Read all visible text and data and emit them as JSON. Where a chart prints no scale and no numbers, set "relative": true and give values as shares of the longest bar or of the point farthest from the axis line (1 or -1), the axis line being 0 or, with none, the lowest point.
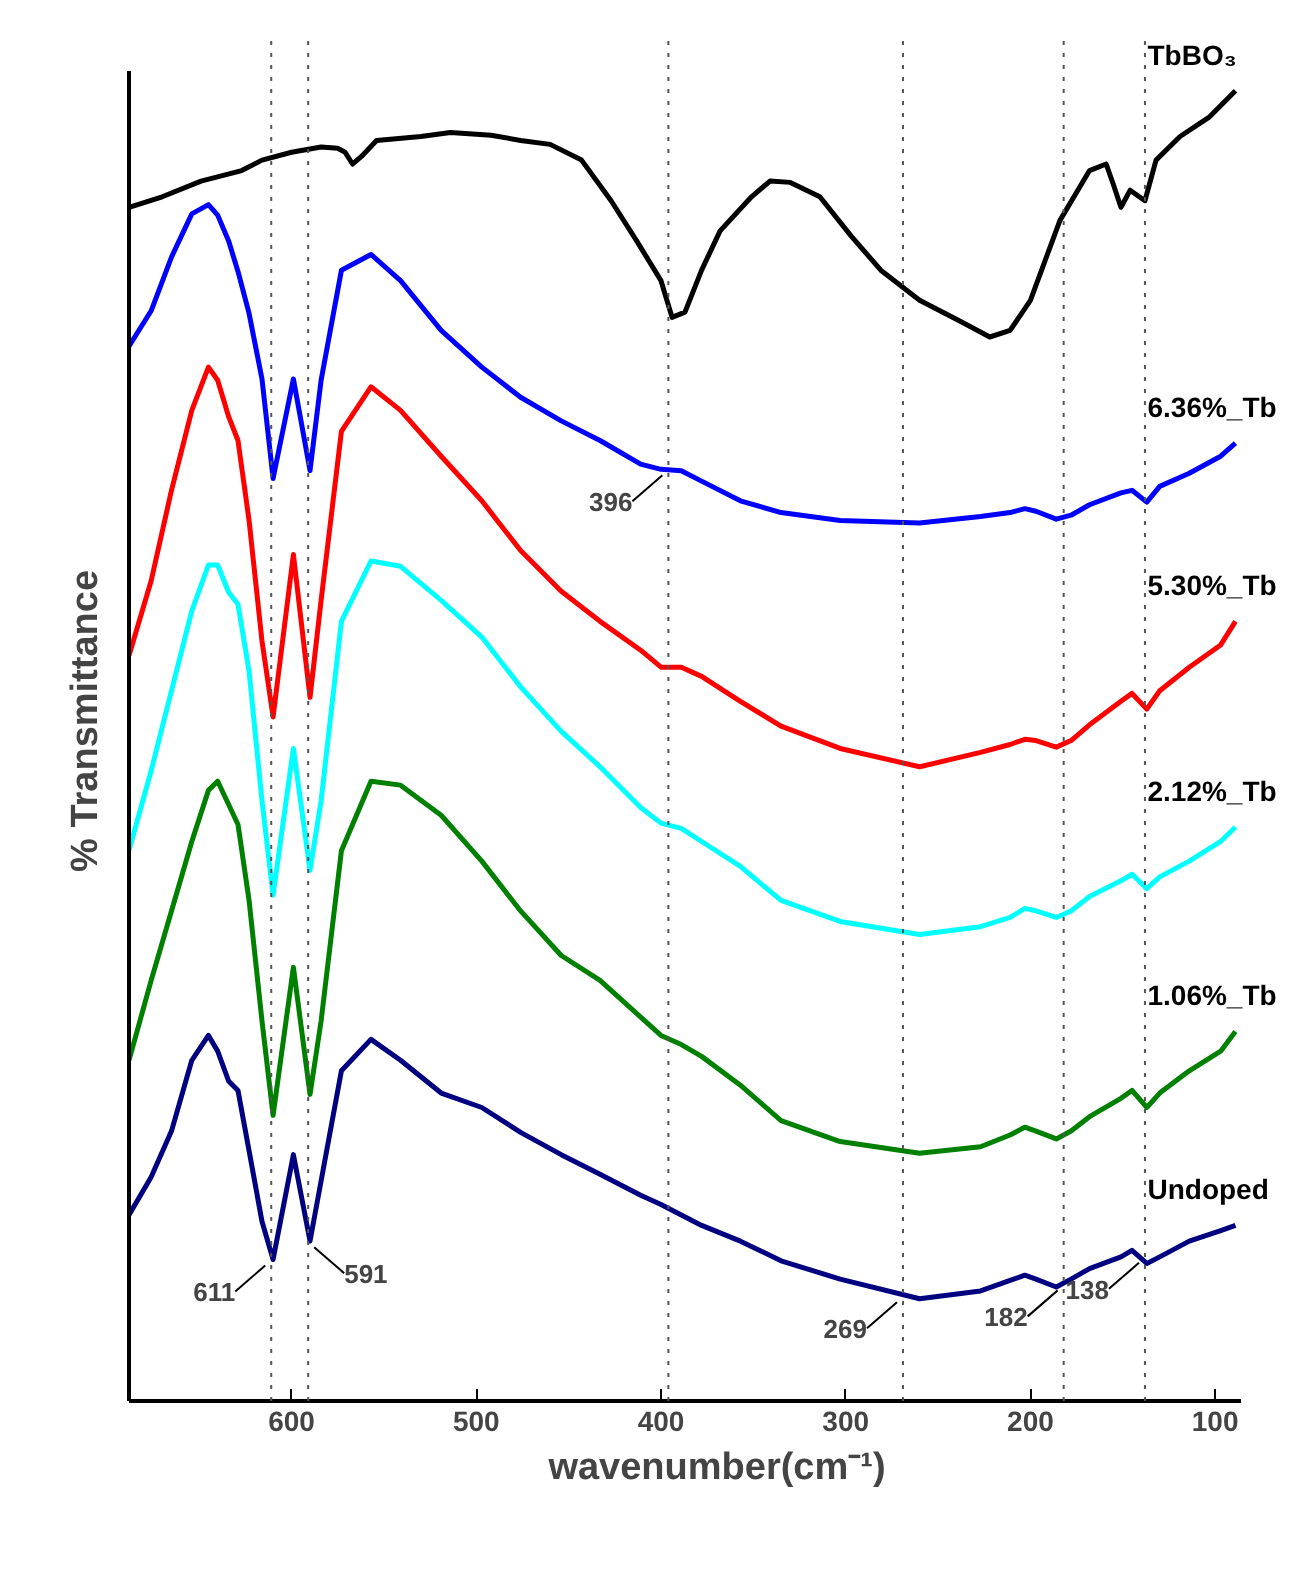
{
  "chart_data": {
    "type": "line",
    "relative": true,
    "xlabel": "wavenumber(cm⁻¹)",
    "ylabel": "% Transmittance",
    "xlim": [
      688,
      86
    ],
    "xticks": [
      600,
      500,
      400,
      300,
      200,
      100
    ],
    "grid": false,
    "legend": false,
    "marker": "none",
    "line_style": "solid",
    "x": [
      688,
      676,
      665,
      654,
      645,
      640,
      634,
      629,
      623,
      616,
      610,
      599,
      590,
      584,
      573,
      557,
      541,
      519,
      497,
      476,
      454,
      433,
      411,
      400,
      389,
      378,
      357,
      335,
      303,
      260,
      227,
      211,
      203,
      197,
      186,
      178,
      168,
      151,
      145,
      137,
      130,
      114,
      97,
      89
    ],
    "series": [
      {
        "name": "TbBO₃",
        "color": "#000000",
        "x": [
          688,
          670,
          649,
          627,
          616,
          600,
          584,
          575,
          571,
          567,
          562,
          554,
          530,
          514,
          492,
          476,
          460,
          443,
          427,
          413,
          400,
          394,
          387,
          378,
          368,
          351,
          341,
          330,
          314,
          297,
          281,
          260,
          238,
          222,
          211,
          200,
          184,
          168,
          159,
          155,
          151,
          146,
          143,
          138,
          132,
          119,
          103,
          89
        ],
        "values": [
          0.911,
          0.919,
          0.931,
          0.939,
          0.947,
          0.953,
          0.957,
          0.956,
          0.953,
          0.944,
          0.95,
          0.962,
          0.965,
          0.968,
          0.966,
          0.962,
          0.959,
          0.947,
          0.916,
          0.885,
          0.855,
          0.827,
          0.831,
          0.863,
          0.893,
          0.919,
          0.931,
          0.93,
          0.919,
          0.889,
          0.863,
          0.84,
          0.824,
          0.812,
          0.817,
          0.84,
          0.901,
          0.939,
          0.944,
          0.928,
          0.911,
          0.924,
          0.921,
          0.916,
          0.947,
          0.965,
          0.98,
          1.0
        ]
      },
      {
        "name": "6.36%_Tb",
        "color": "#0000ff",
        "values": [
          0.805,
          0.832,
          0.873,
          0.906,
          0.913,
          0.905,
          0.885,
          0.862,
          0.83,
          0.78,
          0.704,
          0.78,
          0.71,
          0.779,
          0.863,
          0.875,
          0.855,
          0.817,
          0.789,
          0.766,
          0.748,
          0.733,
          0.715,
          0.711,
          0.71,
          0.702,
          0.687,
          0.678,
          0.672,
          0.67,
          0.675,
          0.678,
          0.681,
          0.679,
          0.673,
          0.676,
          0.684,
          0.693,
          0.695,
          0.686,
          0.698,
          0.708,
          0.721,
          0.731
        ]
      },
      {
        "name": "5.30%_Tb",
        "color": "#ff0000",
        "values": [
          0.569,
          0.626,
          0.695,
          0.756,
          0.789,
          0.779,
          0.751,
          0.733,
          0.672,
          0.58,
          0.522,
          0.646,
          0.537,
          0.611,
          0.74,
          0.774,
          0.756,
          0.721,
          0.687,
          0.649,
          0.618,
          0.595,
          0.573,
          0.56,
          0.56,
          0.553,
          0.534,
          0.515,
          0.498,
          0.484,
          0.495,
          0.501,
          0.505,
          0.504,
          0.499,
          0.504,
          0.516,
          0.534,
          0.54,
          0.528,
          0.542,
          0.56,
          0.577,
          0.595
        ]
      },
      {
        "name": "2.12%_Tb",
        "color": "#00ffff",
        "values": [
          0.42,
          0.481,
          0.542,
          0.603,
          0.638,
          0.638,
          0.617,
          0.608,
          0.557,
          0.458,
          0.386,
          0.498,
          0.405,
          0.458,
          0.595,
          0.641,
          0.637,
          0.611,
          0.583,
          0.545,
          0.511,
          0.484,
          0.453,
          0.441,
          0.437,
          0.427,
          0.408,
          0.382,
          0.366,
          0.356,
          0.362,
          0.369,
          0.376,
          0.374,
          0.369,
          0.374,
          0.385,
          0.397,
          0.402,
          0.391,
          0.4,
          0.412,
          0.427,
          0.438
        ]
      },
      {
        "name": "1.06%_Tb",
        "color": "#008000",
        "values": [
          0.26,
          0.321,
          0.374,
          0.427,
          0.466,
          0.473,
          0.455,
          0.44,
          0.382,
          0.29,
          0.218,
          0.331,
          0.234,
          0.29,
          0.42,
          0.473,
          0.47,
          0.447,
          0.412,
          0.374,
          0.34,
          0.321,
          0.293,
          0.279,
          0.272,
          0.263,
          0.241,
          0.214,
          0.198,
          0.189,
          0.194,
          0.203,
          0.209,
          0.206,
          0.2,
          0.206,
          0.217,
          0.231,
          0.237,
          0.224,
          0.235,
          0.252,
          0.267,
          0.282
        ]
      },
      {
        "name": "Undoped",
        "color": "#000080",
        "values": [
          0.142,
          0.171,
          0.206,
          0.26,
          0.279,
          0.267,
          0.244,
          0.237,
          0.191,
          0.137,
          0.108,
          0.188,
          0.122,
          0.168,
          0.252,
          0.276,
          0.26,
          0.235,
          0.224,
          0.205,
          0.188,
          0.173,
          0.157,
          0.15,
          0.142,
          0.134,
          0.122,
          0.107,
          0.093,
          0.078,
          0.084,
          0.092,
          0.096,
          0.093,
          0.087,
          0.093,
          0.101,
          0.11,
          0.115,
          0.105,
          0.11,
          0.122,
          0.13,
          0.134
        ]
      }
    ],
    "ref_lines": [
      {
        "axis": "x",
        "value": 611,
        "color": "#555555",
        "line_style": "dotted"
      },
      {
        "axis": "x",
        "value": 591,
        "color": "#555555",
        "line_style": "dotted"
      },
      {
        "axis": "x",
        "value": 396,
        "color": "#555555",
        "line_style": "dotted"
      },
      {
        "axis": "x",
        "value": 269,
        "color": "#555555",
        "line_style": "dotted"
      },
      {
        "axis": "x",
        "value": 182,
        "color": "#555555",
        "line_style": "dotted"
      },
      {
        "axis": "x",
        "value": 138,
        "color": "#555555",
        "line_style": "dotted"
      }
    ],
    "annotations": [
      {
        "text": "396",
        "x": 396,
        "y": 0.711
      },
      {
        "text": "611",
        "x": 611,
        "y": 0.108
      },
      {
        "text": "591",
        "x": 591,
        "y": 0.122
      },
      {
        "text": "269",
        "x": 269,
        "y": 0.08
      },
      {
        "text": "182",
        "x": 182,
        "y": 0.089
      },
      {
        "text": "138",
        "x": 138,
        "y": 0.11
      }
    ]
  }
}
